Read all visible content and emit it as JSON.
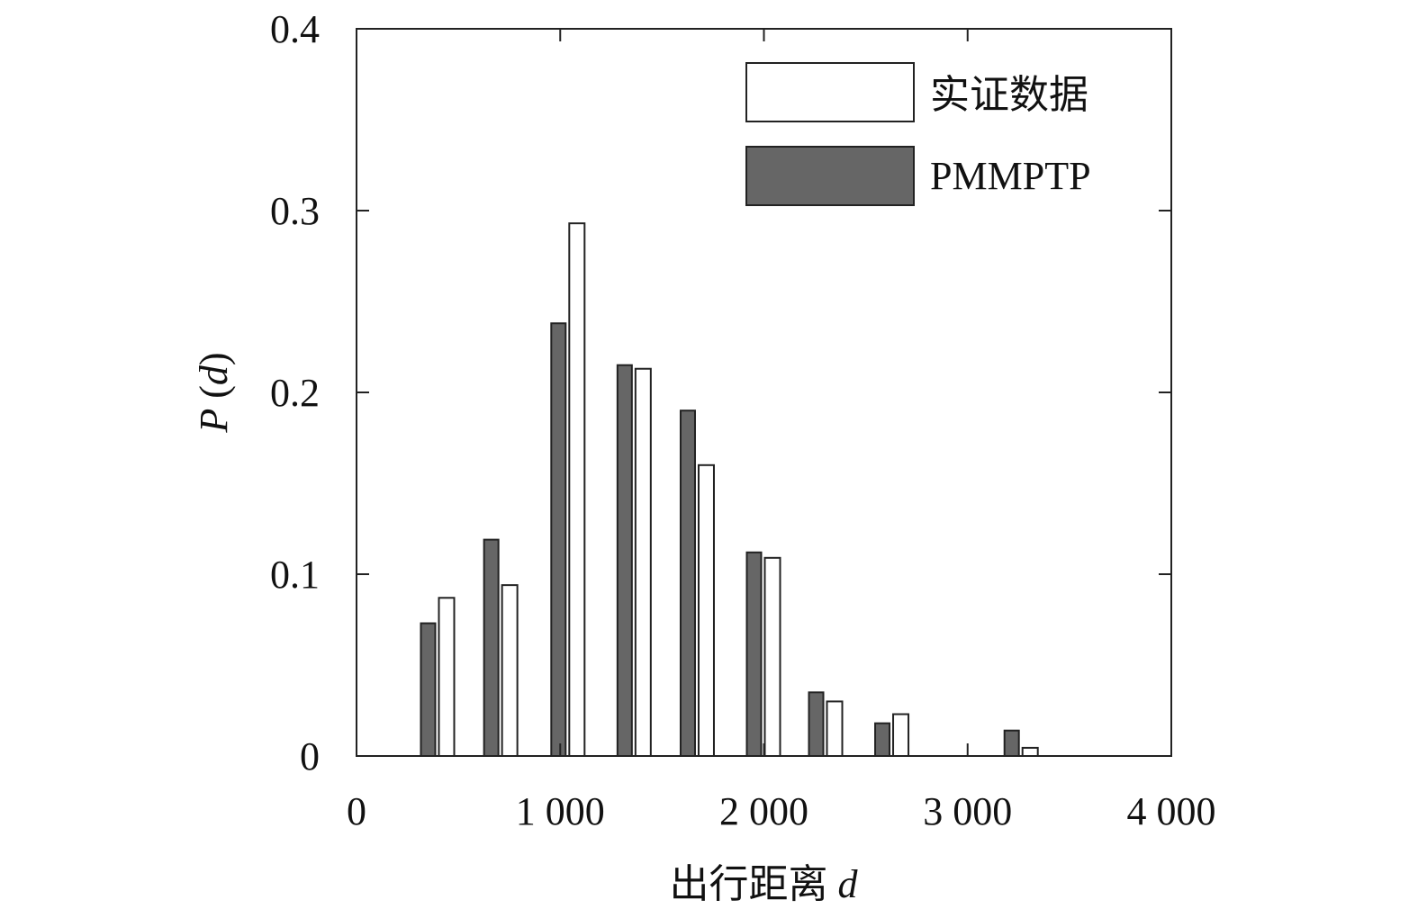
{
  "chart_data": {
    "type": "bar",
    "title": "",
    "xlabel": "出行距离",
    "xlabel_var": "d",
    "ylabel_var_p": "P",
    "ylabel_var_d": "d",
    "xlim": [
      0,
      4000
    ],
    "ylim": [
      0,
      0.4
    ],
    "xticks": [
      0,
      1000,
      2000,
      3000,
      4000
    ],
    "xtick_labels": [
      "0",
      "1 000",
      "2 000",
      "3 000",
      "4 000"
    ],
    "yticks": [
      0,
      0.1,
      0.2,
      0.3,
      0.4
    ],
    "ytick_labels": [
      "0",
      "0.1",
      "0.2",
      "0.3",
      "0.4"
    ],
    "grid": false,
    "legend_position": "top-right",
    "x": [
      400,
      710,
      1040,
      1365,
      1675,
      2000,
      2305,
      2630,
      3265
    ],
    "series": [
      {
        "name": "实证数据",
        "color": "#ffffff",
        "values": [
          0.087,
          0.094,
          0.293,
          0.213,
          0.16,
          0.109,
          0.03,
          0.023,
          0.0045
        ]
      },
      {
        "name": "PMMPTP",
        "color": "#666666",
        "values": [
          0.073,
          0.119,
          0.238,
          0.215,
          0.19,
          0.112,
          0.035,
          0.018,
          0.014
        ]
      }
    ]
  }
}
